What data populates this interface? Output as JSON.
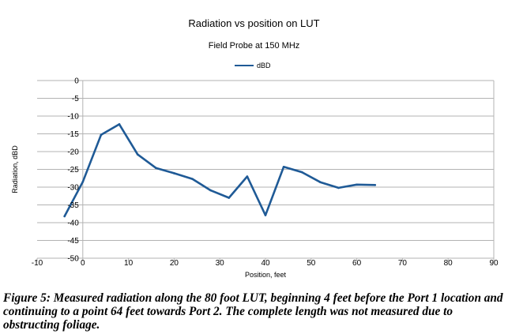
{
  "chart_data": {
    "type": "line",
    "title": "Radiation vs position on LUT",
    "subtitle": "Field Probe at 150 MHz",
    "xlabel": "Position, feet",
    "ylabel": "Radiation, dBD",
    "xlim": [
      -10,
      90
    ],
    "ylim": [
      -50,
      0
    ],
    "xticks": [
      -10,
      0,
      10,
      20,
      30,
      40,
      50,
      60,
      70,
      80,
      90
    ],
    "yticks": [
      0,
      -5,
      -10,
      -15,
      -20,
      -25,
      -30,
      -35,
      -40,
      -45,
      -50
    ],
    "grid": true,
    "legend_position": "top",
    "series": [
      {
        "name": "dBD",
        "color": "#1f5a96",
        "x": [
          -4,
          0,
          4,
          8,
          12,
          16,
          20,
          24,
          28,
          32,
          36,
          40,
          44,
          48,
          52,
          56,
          60,
          64
        ],
        "y": [
          -38.2,
          -28.5,
          -15.3,
          -12.3,
          -20.8,
          -24.6,
          -26.1,
          -27.7,
          -30.9,
          -33.0,
          -27.0,
          -37.9,
          -24.3,
          -25.8,
          -28.6,
          -30.2,
          -29.3,
          -29.4
        ]
      }
    ]
  },
  "caption": "Figure 5: Measured radiation along the 80 foot LUT, beginning 4 feet before the Port 1 location and continuing to a point 64 feet towards Port 2. The complete length was not measured due to obstructing foliage."
}
